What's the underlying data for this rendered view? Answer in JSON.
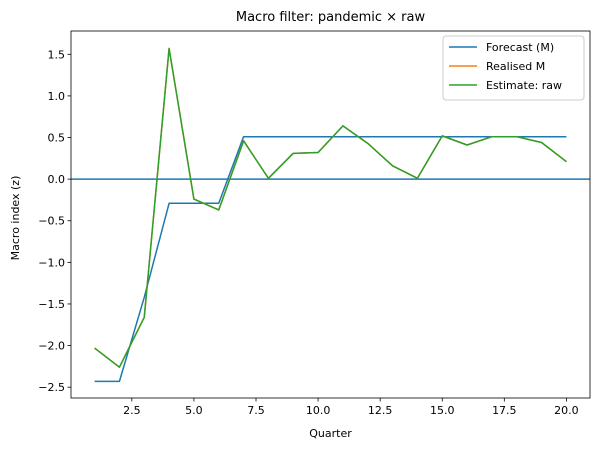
{
  "chart_data": {
    "type": "line",
    "title": "Macro filter: pandemic × raw",
    "xlabel": "Quarter",
    "ylabel": "Macro index (z)",
    "xlim": [
      0.05,
      20.95
    ],
    "ylim": [
      -2.63,
      1.78
    ],
    "xticks": [
      2.5,
      5.0,
      7.5,
      10.0,
      12.5,
      15.0,
      17.5,
      20.0
    ],
    "xtick_labels": [
      "2.5",
      "5.0",
      "7.5",
      "10.0",
      "12.5",
      "15.0",
      "17.5",
      "20.0"
    ],
    "yticks": [
      -2.5,
      -2.0,
      -1.5,
      -1.0,
      -0.5,
      0.0,
      0.5,
      1.0,
      1.5
    ],
    "ytick_labels": [
      "−2.5",
      "−2.0",
      "−1.5",
      "−1.0",
      "−0.5",
      "0.0",
      "0.5",
      "1.0",
      "1.5"
    ],
    "grid": false,
    "legend_position": "top-right",
    "hline": {
      "y": 0.0,
      "color": "#1f77b4"
    },
    "x": [
      1,
      2,
      3,
      4,
      5,
      6,
      7,
      8,
      9,
      10,
      11,
      12,
      13,
      14,
      15,
      16,
      17,
      18,
      19,
      20
    ],
    "series": [
      {
        "name": "Forecast (M)",
        "color": "#1f77b4",
        "values": [
          -2.43,
          -2.43,
          -1.42,
          -0.29,
          -0.29,
          -0.29,
          0.51,
          0.51,
          0.51,
          0.51,
          0.51,
          0.51,
          0.51,
          0.51,
          0.51,
          0.51,
          0.51,
          0.51,
          0.51,
          0.51
        ]
      },
      {
        "name": "Realised M",
        "color": "#ff7f0e",
        "values": [
          -2.03,
          -2.26,
          -1.66,
          1.57,
          -0.24,
          -0.37,
          0.46,
          0.01,
          0.31,
          0.32,
          0.64,
          0.43,
          0.16,
          0.01,
          0.52,
          0.41,
          0.51,
          0.51,
          0.44,
          0.21
        ]
      },
      {
        "name": "Estimate: raw",
        "color": "#2ca02c",
        "values": [
          -2.03,
          -2.26,
          -1.66,
          1.57,
          -0.24,
          -0.37,
          0.46,
          0.01,
          0.31,
          0.32,
          0.64,
          0.43,
          0.16,
          0.01,
          0.52,
          0.41,
          0.51,
          0.51,
          0.44,
          0.21
        ]
      }
    ]
  }
}
